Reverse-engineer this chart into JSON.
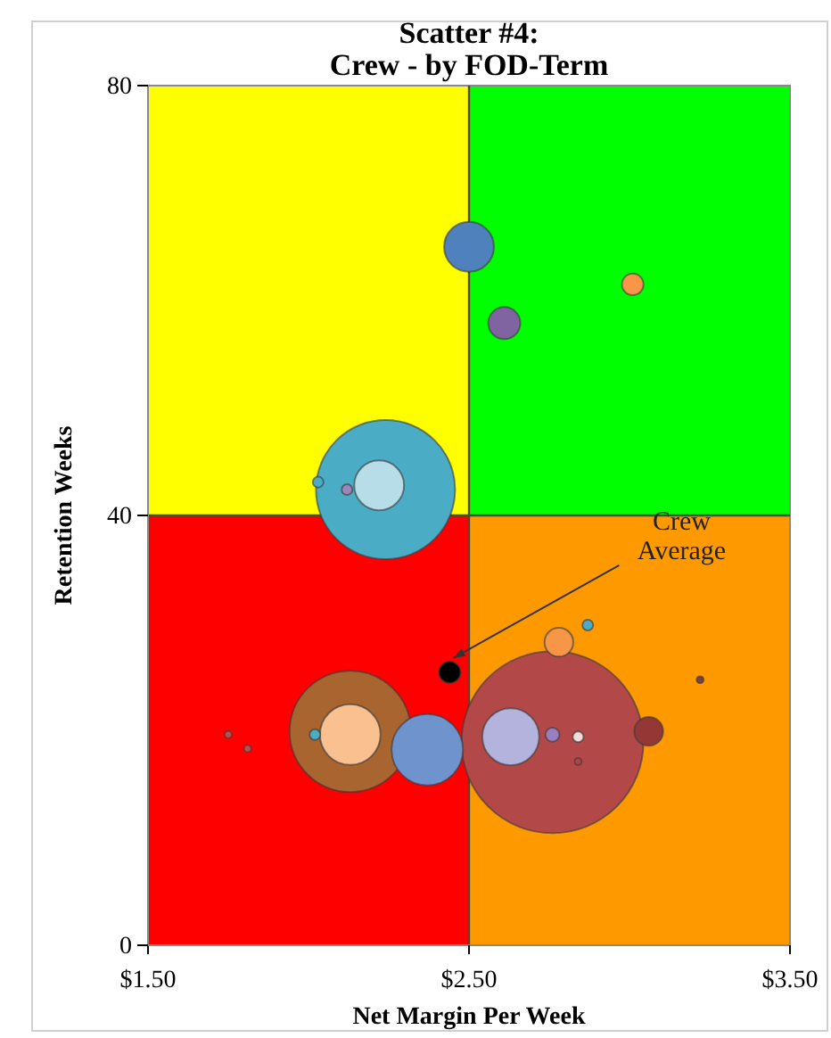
{
  "chart_data": {
    "type": "bubble",
    "title": "Scatter #4:",
    "subtitle": "Crew - by FOD-Term",
    "xlabel": "Net Margin Per Week",
    "ylabel": "Retention Weeks",
    "xlim": [
      1.5,
      3.5
    ],
    "xticks": [
      {
        "value": 1.5,
        "label": "$1.50"
      },
      {
        "value": 2.5,
        "label": "$2.50"
      },
      {
        "value": 3.5,
        "label": "$3.50"
      }
    ],
    "ylim": [
      0,
      80
    ],
    "yticks": [
      0,
      40,
      80
    ],
    "ref_lines": [
      {
        "axis": "x",
        "value": 2.5,
        "color": "#4a4a2a"
      },
      {
        "axis": "y",
        "value": 40,
        "color": "#4a4a2a"
      }
    ],
    "annotations": [
      {
        "text": "Crew Average",
        "x": 2.44,
        "y": 25.4
      }
    ],
    "series": [
      {
        "x": [
          2.76,
          2.24,
          2.13,
          2.37,
          2.5,
          2.13,
          2.63,
          2.22,
          2.61,
          2.78,
          3.06,
          3.01,
          2.44,
          2.12,
          2.03,
          2.02,
          2.76,
          2.84,
          2.87,
          2.84,
          3.22,
          1.75,
          1.81
        ],
        "values": [
          18.9,
          42.4,
          19.9,
          18.2,
          65,
          19.6,
          19.4,
          42.8,
          57.9,
          28.2,
          19.9,
          61.5,
          25.4,
          42.4,
          43.1,
          19.6,
          19.6,
          19.4,
          29.8,
          17.1,
          24.7,
          19.6,
          18.3
        ],
        "sizes": [
          1,
          0.585,
          0.444,
          0.154,
          0.075,
          0.111,
          0.098,
          0.075,
          0.031,
          0.025,
          0.025,
          0.014,
          0.014,
          0.0035,
          0.0035,
          0.0035,
          0.006,
          0.0035,
          0.0035,
          0.0015,
          0.0015,
          0.0015,
          0.0015
        ],
        "colors": [
          "#b34848",
          "#4bacc6",
          "#a8652f",
          "#6f93cd",
          "#4f81bd",
          "#fac090",
          "#b3b3dd",
          "#b7dee8",
          "#8064a2",
          "#f79646",
          "#953735",
          "#f79646",
          "#000000",
          "#9a86b8",
          "#4bacc6",
          "#4bacc6",
          "#9a7fc0",
          "#f2dcdb",
          "#4bacc6",
          "#b24444",
          "#7f4040",
          "#c0504d",
          "#c0504d"
        ]
      }
    ]
  }
}
